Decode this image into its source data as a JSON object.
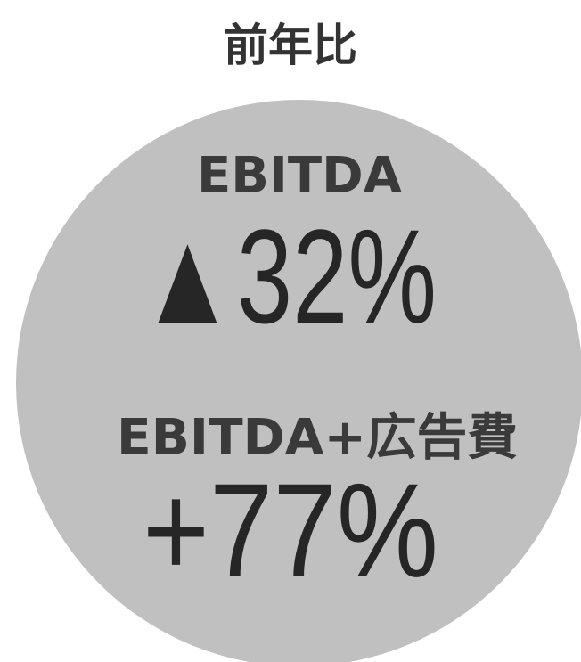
{
  "title": "前年比",
  "items": [
    {
      "label": "EBITDA",
      "value": "▲32%"
    },
    {
      "label": "EBITDA+広告費",
      "value": "+77%"
    }
  ]
}
